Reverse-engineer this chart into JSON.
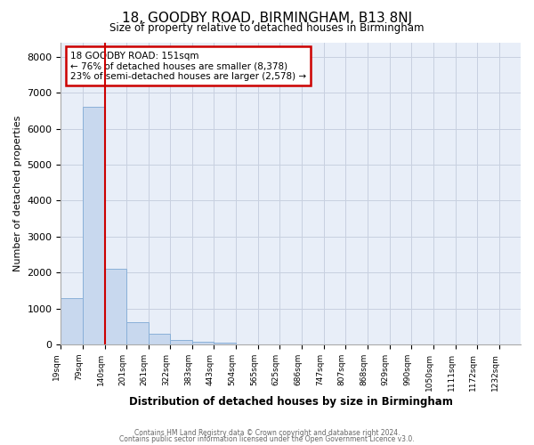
{
  "title": "18, GOODBY ROAD, BIRMINGHAM, B13 8NJ",
  "subtitle": "Size of property relative to detached houses in Birmingham",
  "xlabel": "Distribution of detached houses by size in Birmingham",
  "ylabel": "Number of detached properties",
  "bar_color": "#c8d8ee",
  "bar_edge_color": "#8ab0d8",
  "plot_bg_color": "#e8eef8",
  "fig_bg_color": "#ffffff",
  "grid_color": "#c8d0e0",
  "annotation_box_color": "#cc0000",
  "vline_color": "#cc0000",
  "annotation_line1": "18 GOODBY ROAD: 151sqm",
  "annotation_line2": "← 76% of detached houses are smaller (8,378)",
  "annotation_line3": "23% of semi-detached houses are larger (2,578) →",
  "property_size_idx": 2,
  "categories": [
    "19sqm",
    "79sqm",
    "140sqm",
    "201sqm",
    "261sqm",
    "322sqm",
    "383sqm",
    "443sqm",
    "504sqm",
    "565sqm",
    "625sqm",
    "686sqm",
    "747sqm",
    "807sqm",
    "868sqm",
    "929sqm",
    "990sqm",
    "1050sqm",
    "1111sqm",
    "1172sqm",
    "1232sqm"
  ],
  "bin_edges": [
    19,
    79,
    140,
    201,
    261,
    322,
    383,
    443,
    504,
    565,
    625,
    686,
    747,
    807,
    868,
    929,
    990,
    1050,
    1111,
    1172,
    1232
  ],
  "values": [
    1300,
    6600,
    2100,
    630,
    300,
    130,
    80,
    60,
    0,
    0,
    0,
    0,
    0,
    0,
    0,
    0,
    0,
    0,
    0,
    0
  ],
  "ylim": [
    0,
    8400
  ],
  "yticks": [
    0,
    1000,
    2000,
    3000,
    4000,
    5000,
    6000,
    7000,
    8000
  ],
  "vline_x": 140,
  "footer1": "Contains HM Land Registry data © Crown copyright and database right 2024.",
  "footer2": "Contains public sector information licensed under the Open Government Licence v3.0."
}
